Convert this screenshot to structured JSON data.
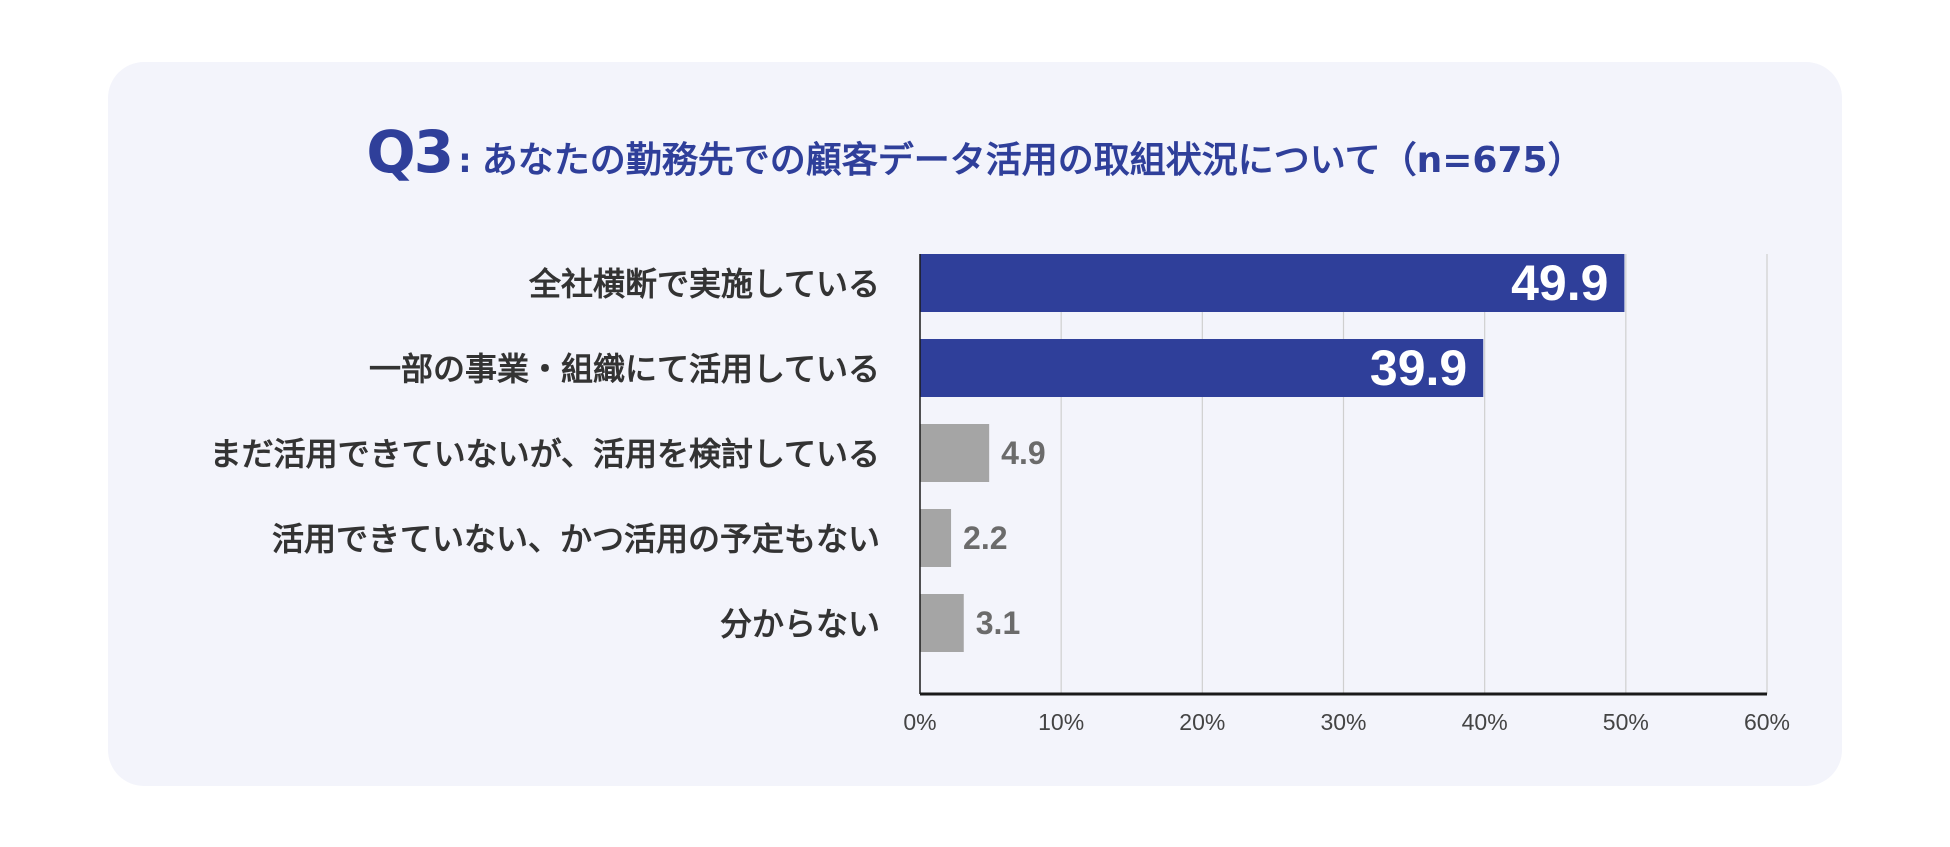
{
  "title": {
    "prefix": "Q3",
    "separator": ":",
    "text": "あなたの勤務先での顧客データ活用の取組状況について（n=675）"
  },
  "colors": {
    "background": "#f3f4fb",
    "primary": "#2f3f9a",
    "secondary": "#a5a5a5",
    "label_text": "#333333",
    "value_text_dark": "#6b6b6b",
    "grid": "#cfcfcf",
    "axis": "#1a1a1a"
  },
  "chart_data": {
    "type": "bar",
    "orientation": "horizontal",
    "categories": [
      "全社横断で実施している",
      "一部の事業・組織にて活用している",
      "まだ活用できていないが、活用を検討している",
      "活用できていない、かつ活用の予定もない",
      "分からない"
    ],
    "values": [
      49.9,
      39.9,
      4.9,
      2.2,
      3.1
    ],
    "value_labels": [
      "49.9",
      "39.9",
      "4.9",
      "2.2",
      "3.1"
    ],
    "bar_colors": [
      "#2f3f9a",
      "#2f3f9a",
      "#a5a5a5",
      "#a5a5a5",
      "#a5a5a5"
    ],
    "label_inside": [
      true,
      true,
      false,
      false,
      false
    ],
    "xlim": [
      0,
      60
    ],
    "xticks": [
      0,
      10,
      20,
      30,
      40,
      50,
      60
    ],
    "xtick_labels": [
      "0%",
      "10%",
      "20%",
      "30%",
      "40%",
      "50%",
      "60%"
    ],
    "grid": true,
    "xlabel": "",
    "ylabel": ""
  }
}
